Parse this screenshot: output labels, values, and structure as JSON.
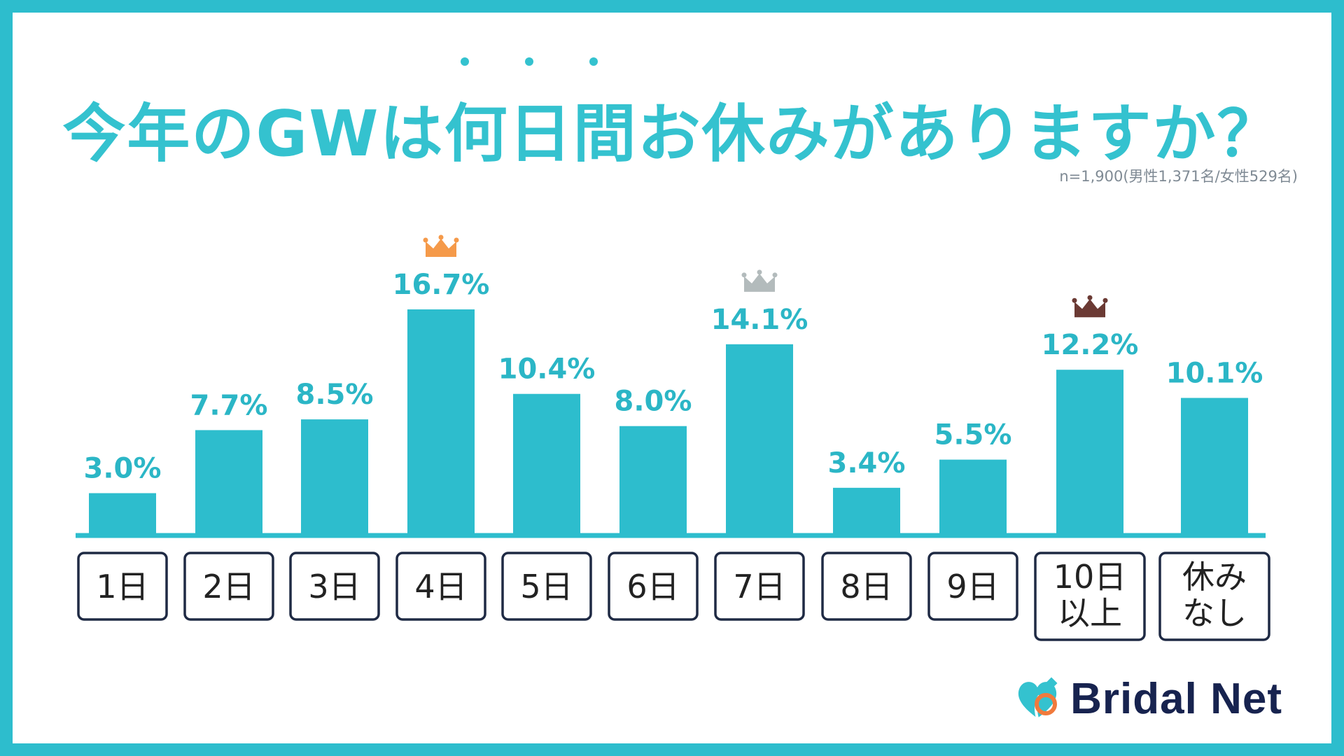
{
  "page": {
    "title": "今年のGWは何日間お休みがありますか？",
    "sample_note": "n=1,900(男性1,371名/女性529名)",
    "brand": "Bridal Net"
  },
  "colors": {
    "frame": "#2dbdcd",
    "bar": "#2dbdcd",
    "value_text": "#2bb6c6",
    "label_border": "#1f2a44",
    "crown_first": "#f59a4a",
    "crown_second": "#b3bbbc",
    "crown_third": "#6b3a34",
    "brand_text": "#17234f"
  },
  "chart_data": {
    "type": "bar",
    "categories": [
      "1日",
      "2日",
      "3日",
      "4日",
      "5日",
      "6日",
      "7日",
      "8日",
      "9日",
      "10日\n以上",
      "休み\nなし"
    ],
    "values": [
      3.0,
      7.7,
      8.5,
      16.7,
      10.4,
      8.0,
      14.1,
      3.4,
      5.5,
      12.2,
      10.1
    ],
    "value_labels": [
      "3.0%",
      "7.7%",
      "8.5%",
      "16.7%",
      "10.4%",
      "8.0%",
      "14.1%",
      "3.4%",
      "5.5%",
      "12.2%",
      "10.1%"
    ],
    "unit": "%",
    "ranks": [
      {
        "category": "4日",
        "rank": 1,
        "icon": "crown-gold-icon"
      },
      {
        "category": "7日",
        "rank": 2,
        "icon": "crown-silver-icon"
      },
      {
        "category": "10日\n以上",
        "rank": 3,
        "icon": "crown-bronze-icon"
      }
    ],
    "ylim": [
      0,
      16.7
    ],
    "grid": false,
    "legend": "none"
  }
}
